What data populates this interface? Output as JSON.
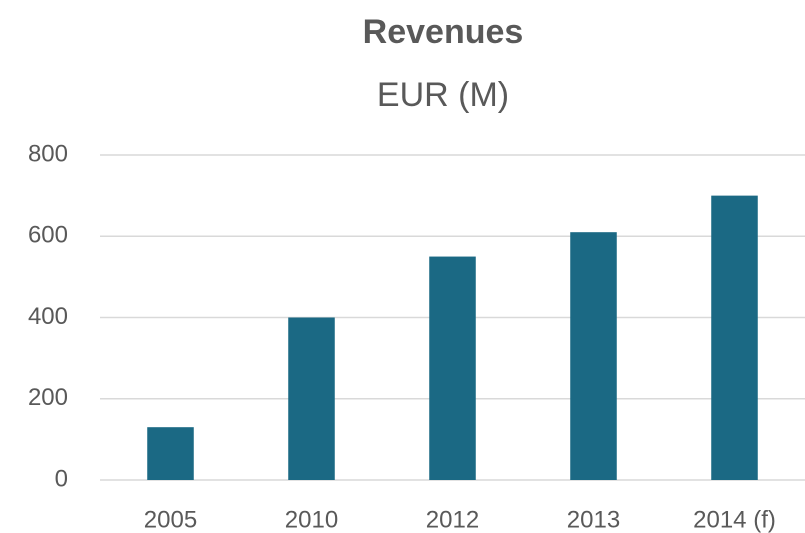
{
  "chart_data": {
    "type": "bar",
    "title": "Revenues",
    "subtitle": "EUR (M)",
    "categories": [
      "2005",
      "2010",
      "2012",
      "2013",
      "2014 (f)"
    ],
    "values": [
      130,
      400,
      550,
      610,
      700
    ],
    "color": "#1b6984",
    "ylim": [
      0,
      800
    ],
    "yticks": [
      0,
      200,
      400,
      600,
      800
    ],
    "grid": true
  }
}
